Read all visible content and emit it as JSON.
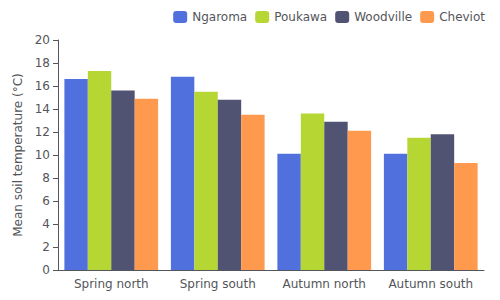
{
  "chart_data": {
    "type": "bar",
    "categories": [
      "Spring north",
      "Spring south",
      "Autumn north",
      "Autumn south"
    ],
    "series": [
      {
        "name": "Ngaroma",
        "values": [
          16.6,
          16.8,
          10.1,
          10.1
        ]
      },
      {
        "name": "Poukawa",
        "values": [
          17.3,
          15.5,
          13.6,
          11.5
        ]
      },
      {
        "name": "Woodville",
        "values": [
          15.6,
          14.8,
          12.9,
          11.8
        ]
      },
      {
        "name": "Cheviot",
        "values": [
          14.9,
          13.5,
          12.1,
          9.3
        ]
      }
    ],
    "ylabel": "Mean soil temperature (°C)",
    "ylim": [
      0,
      20
    ],
    "yticks": [
      0,
      2,
      4,
      6,
      8,
      10,
      12,
      14,
      16,
      18,
      20
    ],
    "grid": false,
    "legend": "upper right"
  }
}
